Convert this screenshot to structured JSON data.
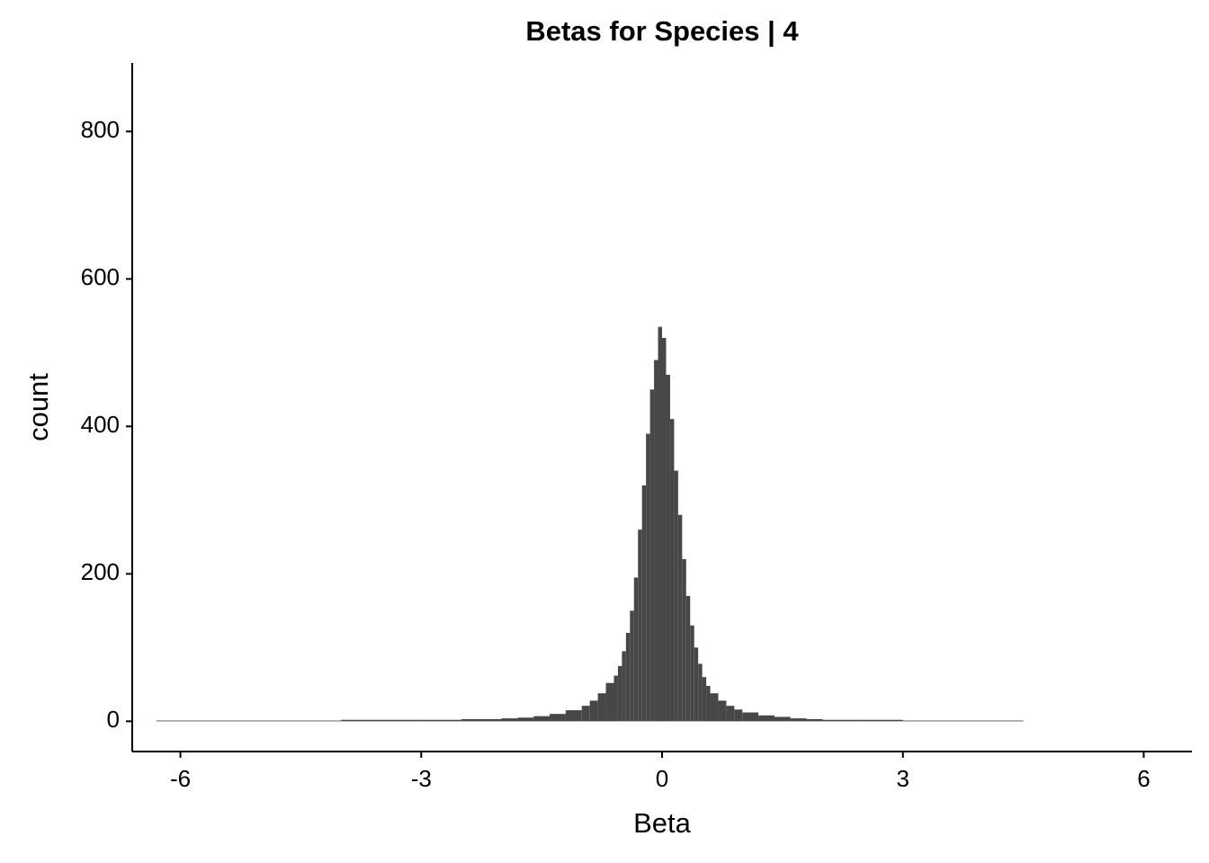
{
  "chart_data": {
    "type": "histogram",
    "title": "Betas for Species | 4",
    "x_label": "Beta",
    "y_label": "count",
    "bins": [
      -6.3,
      -5,
      -4,
      -3,
      -2.5,
      -2,
      -1.8,
      -1.6,
      -1.4,
      -1.2,
      -1.0,
      -0.9,
      -0.8,
      -0.7,
      -0.6,
      -0.55,
      -0.5,
      -0.45,
      -0.4,
      -0.35,
      -0.3,
      -0.25,
      -0.2,
      -0.15,
      -0.1,
      -0.05,
      0,
      0.05,
      0.1,
      0.15,
      0.2,
      0.25,
      0.3,
      0.35,
      0.4,
      0.45,
      0.5,
      0.55,
      0.6,
      0.7,
      0.8,
      0.9,
      1.0,
      1.2,
      1.4,
      1.6,
      1.8,
      2,
      2.5,
      3,
      4,
      4.5
    ],
    "counts": [
      1,
      1,
      2,
      2,
      3,
      4,
      5,
      7,
      10,
      15,
      21,
      28,
      38,
      52,
      62,
      75,
      95,
      120,
      150,
      195,
      260,
      320,
      390,
      450,
      490,
      535,
      520,
      470,
      410,
      340,
      280,
      220,
      170,
      130,
      100,
      78,
      60,
      48,
      38,
      28,
      21,
      16,
      12,
      8,
      6,
      4,
      3,
      2,
      2,
      1,
      1
    ],
    "color": "#474747",
    "xlim": [
      -6.6,
      6.6
    ],
    "xticks": [
      -6,
      -3,
      0,
      3,
      6
    ],
    "ylim": [
      -41,
      893
    ],
    "yticks": [
      0,
      200,
      400,
      600,
      800
    ],
    "grid": false
  }
}
